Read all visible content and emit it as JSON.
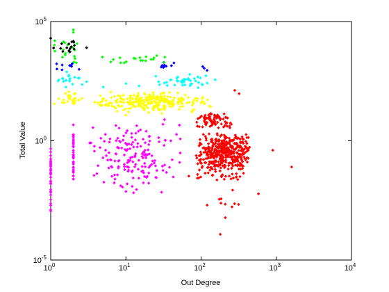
{
  "chart_data": {
    "type": "scatter",
    "xlabel": "Out Degree",
    "ylabel": "Total Value",
    "xscale": "log",
    "yscale": "log",
    "xlim": [
      1,
      10000
    ],
    "ylim": [
      1e-05,
      100000
    ],
    "grid": false,
    "legend": "none",
    "x_ticks": [
      {
        "value": 1,
        "base": "10",
        "exp": "0"
      },
      {
        "value": 10,
        "base": "10",
        "exp": "1"
      },
      {
        "value": 100,
        "base": "10",
        "exp": "2"
      },
      {
        "value": 1000,
        "base": "10",
        "exp": "3"
      },
      {
        "value": 10000,
        "base": "10",
        "exp": "4"
      }
    ],
    "y_ticks": [
      {
        "value": 1e-05,
        "base": "10",
        "exp": "-5"
      },
      {
        "value": 1,
        "base": "10",
        "exp": "0"
      },
      {
        "value": 100000,
        "base": "10",
        "exp": "5"
      }
    ],
    "series": [
      {
        "color": "#ff0000",
        "clusters": [
          {
            "x": [
              80,
              500
            ],
            "y": [
              0.05,
              2
            ],
            "n": 420
          },
          {
            "x": [
              80,
              280
            ],
            "y": [
              3,
              15
            ],
            "n": 80
          },
          {
            "x": [
              60,
              600
            ],
            "y": [
              0.02,
              0.05
            ],
            "n": 25
          },
          {
            "x": [
              150,
              350
            ],
            "y": [
              0.0007,
              0.01
            ],
            "n": 8
          }
        ],
        "points": [
          [
            280,
            130
          ],
          [
            320,
            95
          ],
          [
            1600,
            0.08
          ],
          [
            900,
            0.4
          ],
          [
            580,
            0.006
          ],
          [
            180,
            0.00012
          ],
          [
            120,
            0.002
          ],
          [
            210,
            0.0006
          ]
        ]
      },
      {
        "color": "#ff00ff",
        "clusters": [
          {
            "x": [
              1,
              1
            ],
            "y": [
              0.00025,
              10
            ],
            "n": 35
          },
          {
            "x": [
              2,
              2
            ],
            "y": [
              0.003,
              10
            ],
            "n": 40
          },
          {
            "x": [
              3,
              60
            ],
            "y": [
              0.005,
              12
            ],
            "n": 170
          }
        ],
        "points": []
      },
      {
        "color": "#ffff00",
        "clusters": [
          {
            "x": [
              1,
              3
            ],
            "y": [
              30,
              150
            ],
            "n": 30
          },
          {
            "x": [
              3,
              150
            ],
            "y": [
              15,
              120
            ],
            "n": 260
          }
        ],
        "points": [
          [
            20,
            15
          ],
          [
            10,
            12
          ],
          [
            30,
            14
          ]
        ]
      },
      {
        "color": "#00ffff",
        "clusters": [
          {
            "x": [
              1,
              3
            ],
            "y": [
              150,
              800
            ],
            "n": 20
          },
          {
            "x": [
              20,
              180
            ],
            "y": [
              150,
              650
            ],
            "n": 45
          }
        ],
        "points": [
          [
            5,
            180
          ],
          [
            15,
            200
          ],
          [
            10,
            250
          ],
          [
            3,
            300
          ]
        ]
      },
      {
        "color": "#0000ff",
        "clusters": [
          {
            "x": [
              1,
              3
            ],
            "y": [
              800,
              1800
            ],
            "n": 10
          },
          {
            "x": [
              25,
              50
            ],
            "y": [
              900,
              2200
            ],
            "n": 10
          }
        ],
        "points": [
          [
            110,
            1100
          ],
          [
            120,
            900
          ],
          [
            105,
            1300
          ]
        ]
      },
      {
        "color": "#00ff00",
        "clusters": [
          {
            "x": [
              1,
              3
            ],
            "y": [
              1800,
              20000
            ],
            "n": 20
          },
          {
            "x": [
              4,
              45
            ],
            "y": [
              1500,
              4500
            ],
            "n": 20
          }
        ],
        "points": [
          [
            2,
            35000
          ],
          [
            2,
            45000
          ]
        ]
      },
      {
        "color": "#000000",
        "clusters": [
          {
            "x": [
              1,
              3
            ],
            "y": [
              4000,
              25000
            ],
            "n": 14
          }
        ],
        "points": [
          [
            1,
            20000
          ],
          [
            2,
            15000
          ],
          [
            3,
            8000
          ]
        ]
      }
    ]
  }
}
